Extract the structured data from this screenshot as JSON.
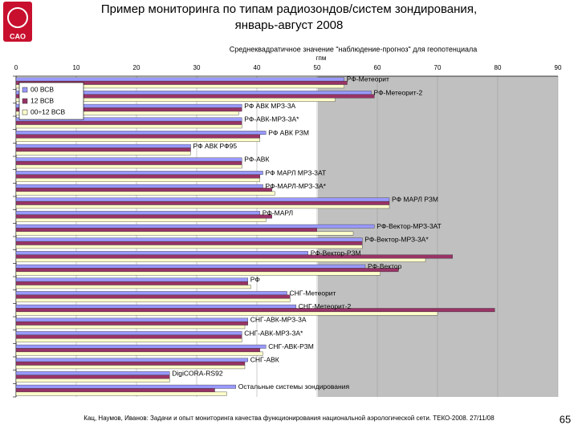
{
  "slide": {
    "title": [
      "Пример мониторинга по типам радиозондов/систем зондирования,",
      "январь-август 2008"
    ],
    "logo": "CAO",
    "footer": "Кац, Наумов, Иванов: Задачи и опыт мониторинга качества функционирования национальной аэрологической сети. ТЕКО-2008. 27/11/08",
    "page_number": "65"
  },
  "chart_data": {
    "type": "hbar",
    "title": "Среднеквадратичное значение \"наблюдение-прогноз\" для геопотенциала",
    "x_label": "гпм",
    "categories": [
      "РФ-Метеорит",
      "РФ-Метеорит-2",
      "РФ АВК МРЗ-3А",
      "РФ-АВК-МРЗ-3А*",
      "РФ АВК РЗМ",
      "РФ АВК РФ95",
      "РФ-АВК",
      "РФ МАРЛ МРЗ-3АТ",
      "РФ-МАРЛ-МРЗ-3А*",
      "РФ МАРЛ РЗМ",
      "РФ-МАРЛ",
      "РФ-Вектор-МРЗ-3АТ",
      "РФ-Вектор-МРЗ-3А*",
      "РФ-Вектор-РЗМ",
      "РФ-Вектор",
      "РФ",
      "СНГ-Метеорит",
      "СНГ-Метеорит-2",
      "СНГ-АВК-МРЗ-3А",
      "СНГ-АВК-МРЗ-3А*",
      "СНГ-АВК-РЗМ",
      "СНГ-АВК",
      "DigiCORA-RS92",
      "Остальные системы зондирования"
    ],
    "series": [
      {
        "name": "00 ВСВ",
        "color": "#9999ff",
        "values": [
          54.5,
          59,
          37.5,
          37.5,
          41.5,
          29,
          37.5,
          41,
          41,
          62,
          40.5,
          59.5,
          57.5,
          48.5,
          58,
          38.5,
          45,
          46.5,
          38.5,
          37.5,
          41.5,
          38.5,
          25.5,
          36.5
        ]
      },
      {
        "name": "12 ВСВ",
        "color": "#993366",
        "values": [
          55,
          59.5,
          37.5,
          37.5,
          40.5,
          29,
          37.5,
          40.5,
          42.5,
          62,
          42.5,
          50,
          57.5,
          72.5,
          63.5,
          38.5,
          45.5,
          79.5,
          38.5,
          37.5,
          40.5,
          38,
          25.5,
          33
        ]
      },
      {
        "name": "00÷12 ВСВ",
        "color": "#ffffcc",
        "values": [
          54.5,
          53,
          37,
          37.5,
          40.5,
          29,
          37.5,
          40.5,
          43,
          62,
          41.5,
          56,
          57.5,
          68,
          60.5,
          39,
          45.5,
          70,
          38,
          37.5,
          41,
          38,
          25.5,
          35
        ]
      }
    ],
    "xlim": [
      0,
      90
    ],
    "xticks": [
      0,
      10,
      20,
      30,
      40,
      50,
      60,
      70,
      80,
      90
    ],
    "grid": true,
    "legend": "top-left"
  }
}
